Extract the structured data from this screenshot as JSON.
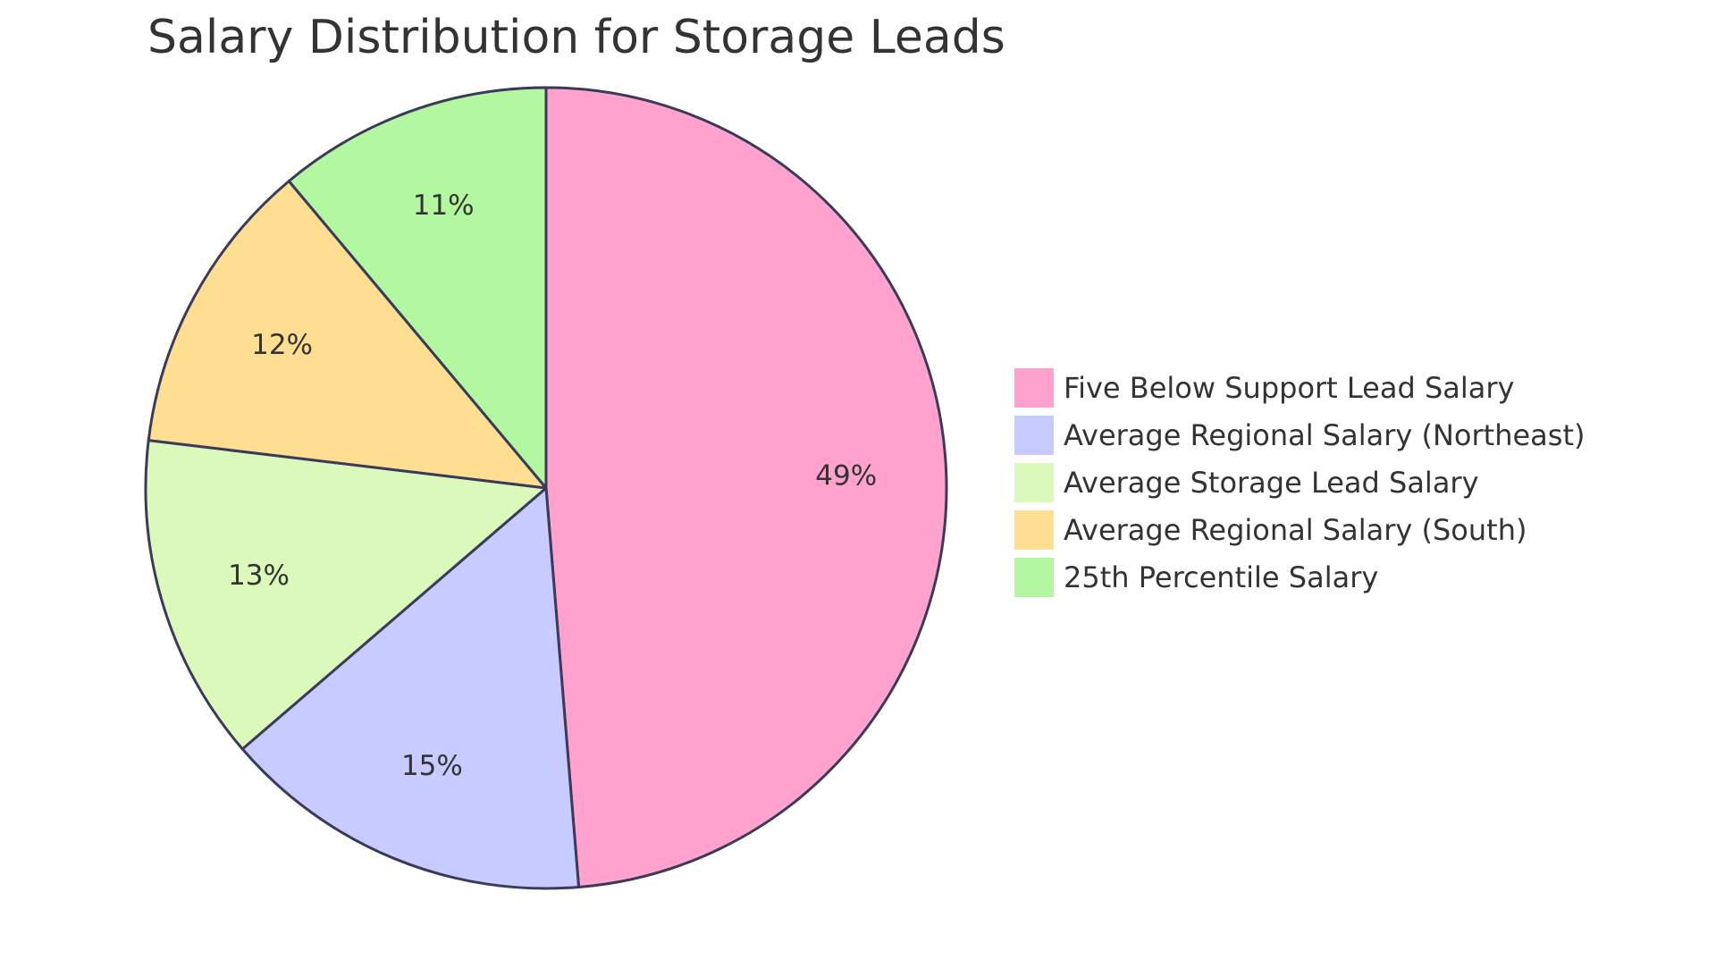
{
  "chart_data": {
    "type": "pie",
    "title": "Salary Distribution for Storage Leads",
    "slices": [
      {
        "label": "Five Below Support Lead Salary",
        "display": "49%",
        "color": "#FFA3CE"
      },
      {
        "label": "Average Regional Salary (Northeast)",
        "display": "15%",
        "color": "#C8CBFF"
      },
      {
        "label": "Average Storage Lead Salary",
        "display": "13%",
        "color": "#DBF9BA"
      },
      {
        "label": "Average Regional Salary (South)",
        "display": "12%",
        "color": "#FEDF92"
      },
      {
        "label": "25th Percentile Salary",
        "display": "11%",
        "color": "#B3F8A0"
      }
    ],
    "values": [
      48.7,
      15.0,
      13.2,
      12.0,
      11.1
    ],
    "legend_position": "right",
    "stroke_color": "#3A3A5A"
  }
}
